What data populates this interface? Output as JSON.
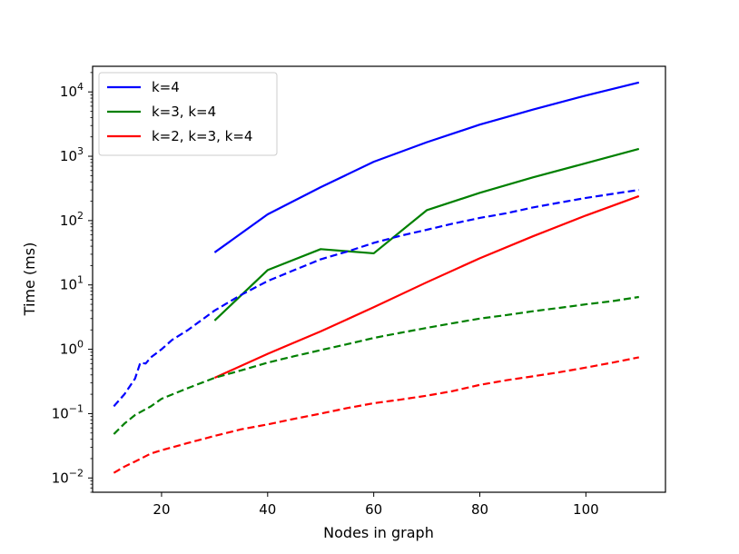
{
  "chart_data": {
    "type": "line",
    "xlabel": "Nodes in graph",
    "ylabel": "Time (ms)",
    "xlim": [
      7,
      115
    ],
    "ylim": [
      0.006,
      25000
    ],
    "yscale": "log",
    "grid": false,
    "legend_position": "upper-left",
    "x_ticks": [
      20,
      40,
      60,
      80,
      100
    ],
    "y_ticks": [
      {
        "value": 0.01,
        "base": "10",
        "exp": "−2"
      },
      {
        "value": 0.1,
        "base": "10",
        "exp": "−1"
      },
      {
        "value": 1,
        "base": "10",
        "exp": "0"
      },
      {
        "value": 10,
        "base": "10",
        "exp": "1"
      },
      {
        "value": 100,
        "base": "10",
        "exp": "2"
      },
      {
        "value": 1000,
        "base": "10",
        "exp": "3"
      },
      {
        "value": 10000,
        "base": "10",
        "exp": "4"
      }
    ],
    "series": [
      {
        "name": "k=4",
        "legend": true,
        "color": "#0000ff",
        "dashed": false,
        "x": [
          30,
          40,
          50,
          60,
          70,
          80,
          90,
          100,
          110
        ],
        "y": [
          32,
          125,
          330,
          820,
          1650,
          3100,
          5300,
          8800,
          14000
        ]
      },
      {
        "name": "k=3, k=4",
        "legend": true,
        "color": "#008000",
        "dashed": false,
        "x": [
          30,
          40,
          50,
          60,
          70,
          80,
          90,
          100,
          110
        ],
        "y": [
          2.8,
          17,
          36,
          31,
          145,
          270,
          470,
          780,
          1300
        ]
      },
      {
        "name": "k=2, k=3, k=4",
        "legend": true,
        "color": "#ff0000",
        "dashed": false,
        "x": [
          30,
          40,
          50,
          60,
          70,
          80,
          90,
          100,
          110
        ],
        "y": [
          0.36,
          0.85,
          1.9,
          4.5,
          11,
          26,
          57,
          120,
          240
        ]
      },
      {
        "name": "k=4 (dashed)",
        "legend": false,
        "color": "#0000ff",
        "dashed": true,
        "x": [
          11,
          13,
          15,
          16,
          17,
          18,
          20,
          22,
          25,
          30,
          35,
          40,
          45,
          50,
          55,
          60,
          65,
          70,
          75,
          80,
          85,
          90,
          95,
          100,
          105,
          110
        ],
        "y": [
          0.13,
          0.2,
          0.35,
          0.62,
          0.6,
          0.75,
          1.0,
          1.4,
          2.0,
          4.0,
          7.0,
          11.5,
          17,
          25,
          33,
          45,
          58,
          72,
          90,
          110,
          130,
          160,
          190,
          225,
          260,
          300
        ]
      },
      {
        "name": "k=3, k=4 (dashed)",
        "legend": false,
        "color": "#008000",
        "dashed": true,
        "x": [
          11,
          13,
          15,
          18,
          20,
          25,
          30,
          35,
          40,
          45,
          50,
          55,
          60,
          65,
          70,
          75,
          80,
          85,
          90,
          95,
          100,
          105,
          110
        ],
        "y": [
          0.048,
          0.07,
          0.095,
          0.13,
          0.17,
          0.25,
          0.36,
          0.47,
          0.62,
          0.78,
          0.97,
          1.2,
          1.5,
          1.8,
          2.15,
          2.55,
          3.0,
          3.4,
          3.9,
          4.4,
          5.0,
          5.6,
          6.5
        ]
      },
      {
        "name": "k=2, k=3, k=4 (dashed)",
        "legend": false,
        "color": "#ff0000",
        "dashed": true,
        "x": [
          11,
          13,
          15,
          18,
          20,
          25,
          30,
          35,
          40,
          45,
          50,
          55,
          60,
          65,
          70,
          75,
          80,
          85,
          90,
          95,
          100,
          105,
          110
        ],
        "y": [
          0.012,
          0.015,
          0.018,
          0.024,
          0.027,
          0.035,
          0.045,
          0.057,
          0.068,
          0.083,
          0.1,
          0.122,
          0.145,
          0.165,
          0.19,
          0.225,
          0.28,
          0.33,
          0.38,
          0.44,
          0.52,
          0.62,
          0.75
        ]
      }
    ]
  }
}
